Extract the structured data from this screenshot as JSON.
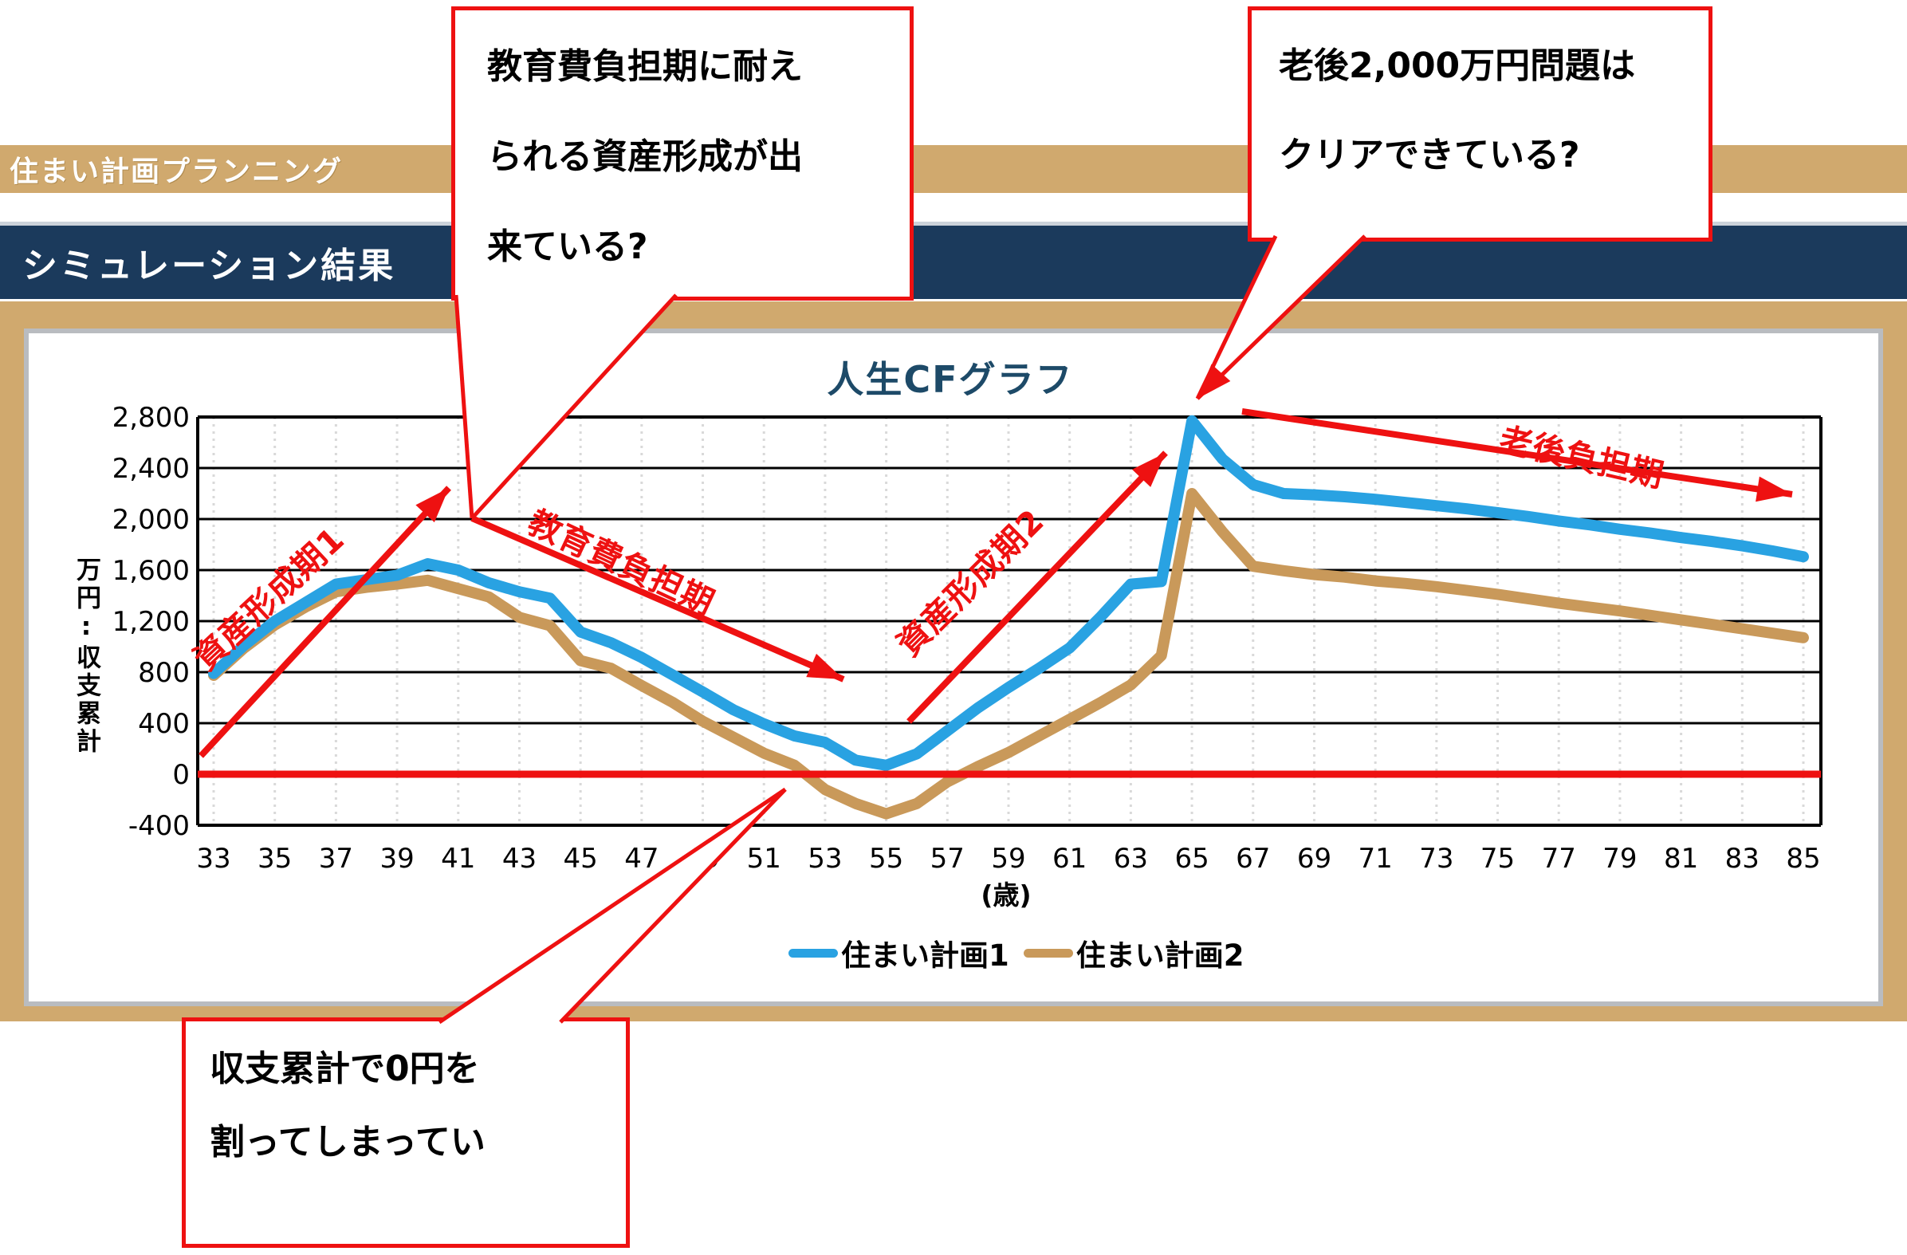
{
  "header": {
    "app_bar": "住まい計画プランニング",
    "section_bar": "シミュレーション結果"
  },
  "callouts": {
    "education": {
      "lines": [
        "教育費負担期に耐え",
        "られる資産形成が出",
        "来ている?"
      ]
    },
    "retirement": {
      "lines": [
        "老後2,000万円問題は",
        "クリアできている?"
      ]
    },
    "zero": {
      "lines": [
        "収支累計で0円を",
        "割ってしまってい"
      ]
    }
  },
  "legend": {
    "plan1": "住まい計画1",
    "plan2": "住まい計画2"
  },
  "chart_data": {
    "type": "line",
    "title": "人生CFグラフ",
    "xlabel": "(歳)",
    "ylabel": "万円:収支累計",
    "x_start": 33,
    "x_end": 85,
    "x_tick_ages": [
      33,
      35,
      37,
      39,
      41,
      43,
      45,
      47,
      49,
      51,
      53,
      55,
      57,
      59,
      61,
      63,
      65,
      67,
      69,
      71,
      73,
      75,
      77,
      79,
      81,
      83,
      85
    ],
    "ylim": [
      -400,
      2800
    ],
    "y_ticks": [
      {
        "v": 2800,
        "label": "2,800"
      },
      {
        "v": 2400,
        "label": "2,400"
      },
      {
        "v": 2000,
        "label": "2,000"
      },
      {
        "v": 1600,
        "label": "1,600"
      },
      {
        "v": 1200,
        "label": "1,200"
      },
      {
        "v": 800,
        "label": "800"
      },
      {
        "v": 400,
        "label": "400"
      },
      {
        "v": 0,
        "label": "0"
      },
      {
        "v": -400,
        "label": "-400"
      }
    ],
    "grid": "on",
    "zero_line_color": "#ee1111",
    "legend_position": "bottom",
    "series": [
      {
        "name": "住まい計画1",
        "color": "#29a2e2",
        "values": [
          790,
          1010,
          1200,
          1345,
          1490,
          1525,
          1560,
          1650,
          1600,
          1500,
          1430,
          1380,
          1115,
          1030,
          915,
          780,
          645,
          505,
          395,
          300,
          250,
          110,
          70,
          160,
          340,
          520,
          680,
          830,
          990,
          1230,
          1490,
          1510,
          2770,
          2470,
          2270,
          2200,
          2190,
          2175,
          2155,
          2130,
          2105,
          2080,
          2050,
          2020,
          1985,
          1955,
          1920,
          1890,
          1855,
          1825,
          1790,
          1750,
          1705
        ]
      },
      {
        "name": "住まい計画2",
        "color": "#c9995a",
        "values": [
          775,
          990,
          1170,
          1310,
          1430,
          1465,
          1490,
          1520,
          1455,
          1390,
          1230,
          1165,
          890,
          830,
          695,
          565,
          415,
          290,
          165,
          70,
          -120,
          -230,
          -310,
          -230,
          -60,
          60,
          170,
          300,
          430,
          560,
          700,
          930,
          2200,
          1900,
          1630,
          1595,
          1565,
          1545,
          1515,
          1495,
          1470,
          1440,
          1410,
          1375,
          1340,
          1310,
          1280,
          1245,
          1210,
          1175,
          1140,
          1105,
          1070
        ]
      }
    ],
    "annotations": [
      {
        "id": "phase1",
        "text": "資産形成期1",
        "color": "#ee1111"
      },
      {
        "id": "education",
        "text": "教育費負担期",
        "color": "#ee1111"
      },
      {
        "id": "phase2",
        "text": "資産形成期2",
        "color": "#ee1111"
      },
      {
        "id": "oldage",
        "text": "老後負担期",
        "color": "#ee1111"
      }
    ]
  },
  "colors": {
    "accent_tan": "#d0a96e",
    "accent_navy": "#1b3a5c",
    "panel_border": "#b9bcc0",
    "annotation_red": "#ee1111",
    "title_navy": "#1d4a68"
  }
}
